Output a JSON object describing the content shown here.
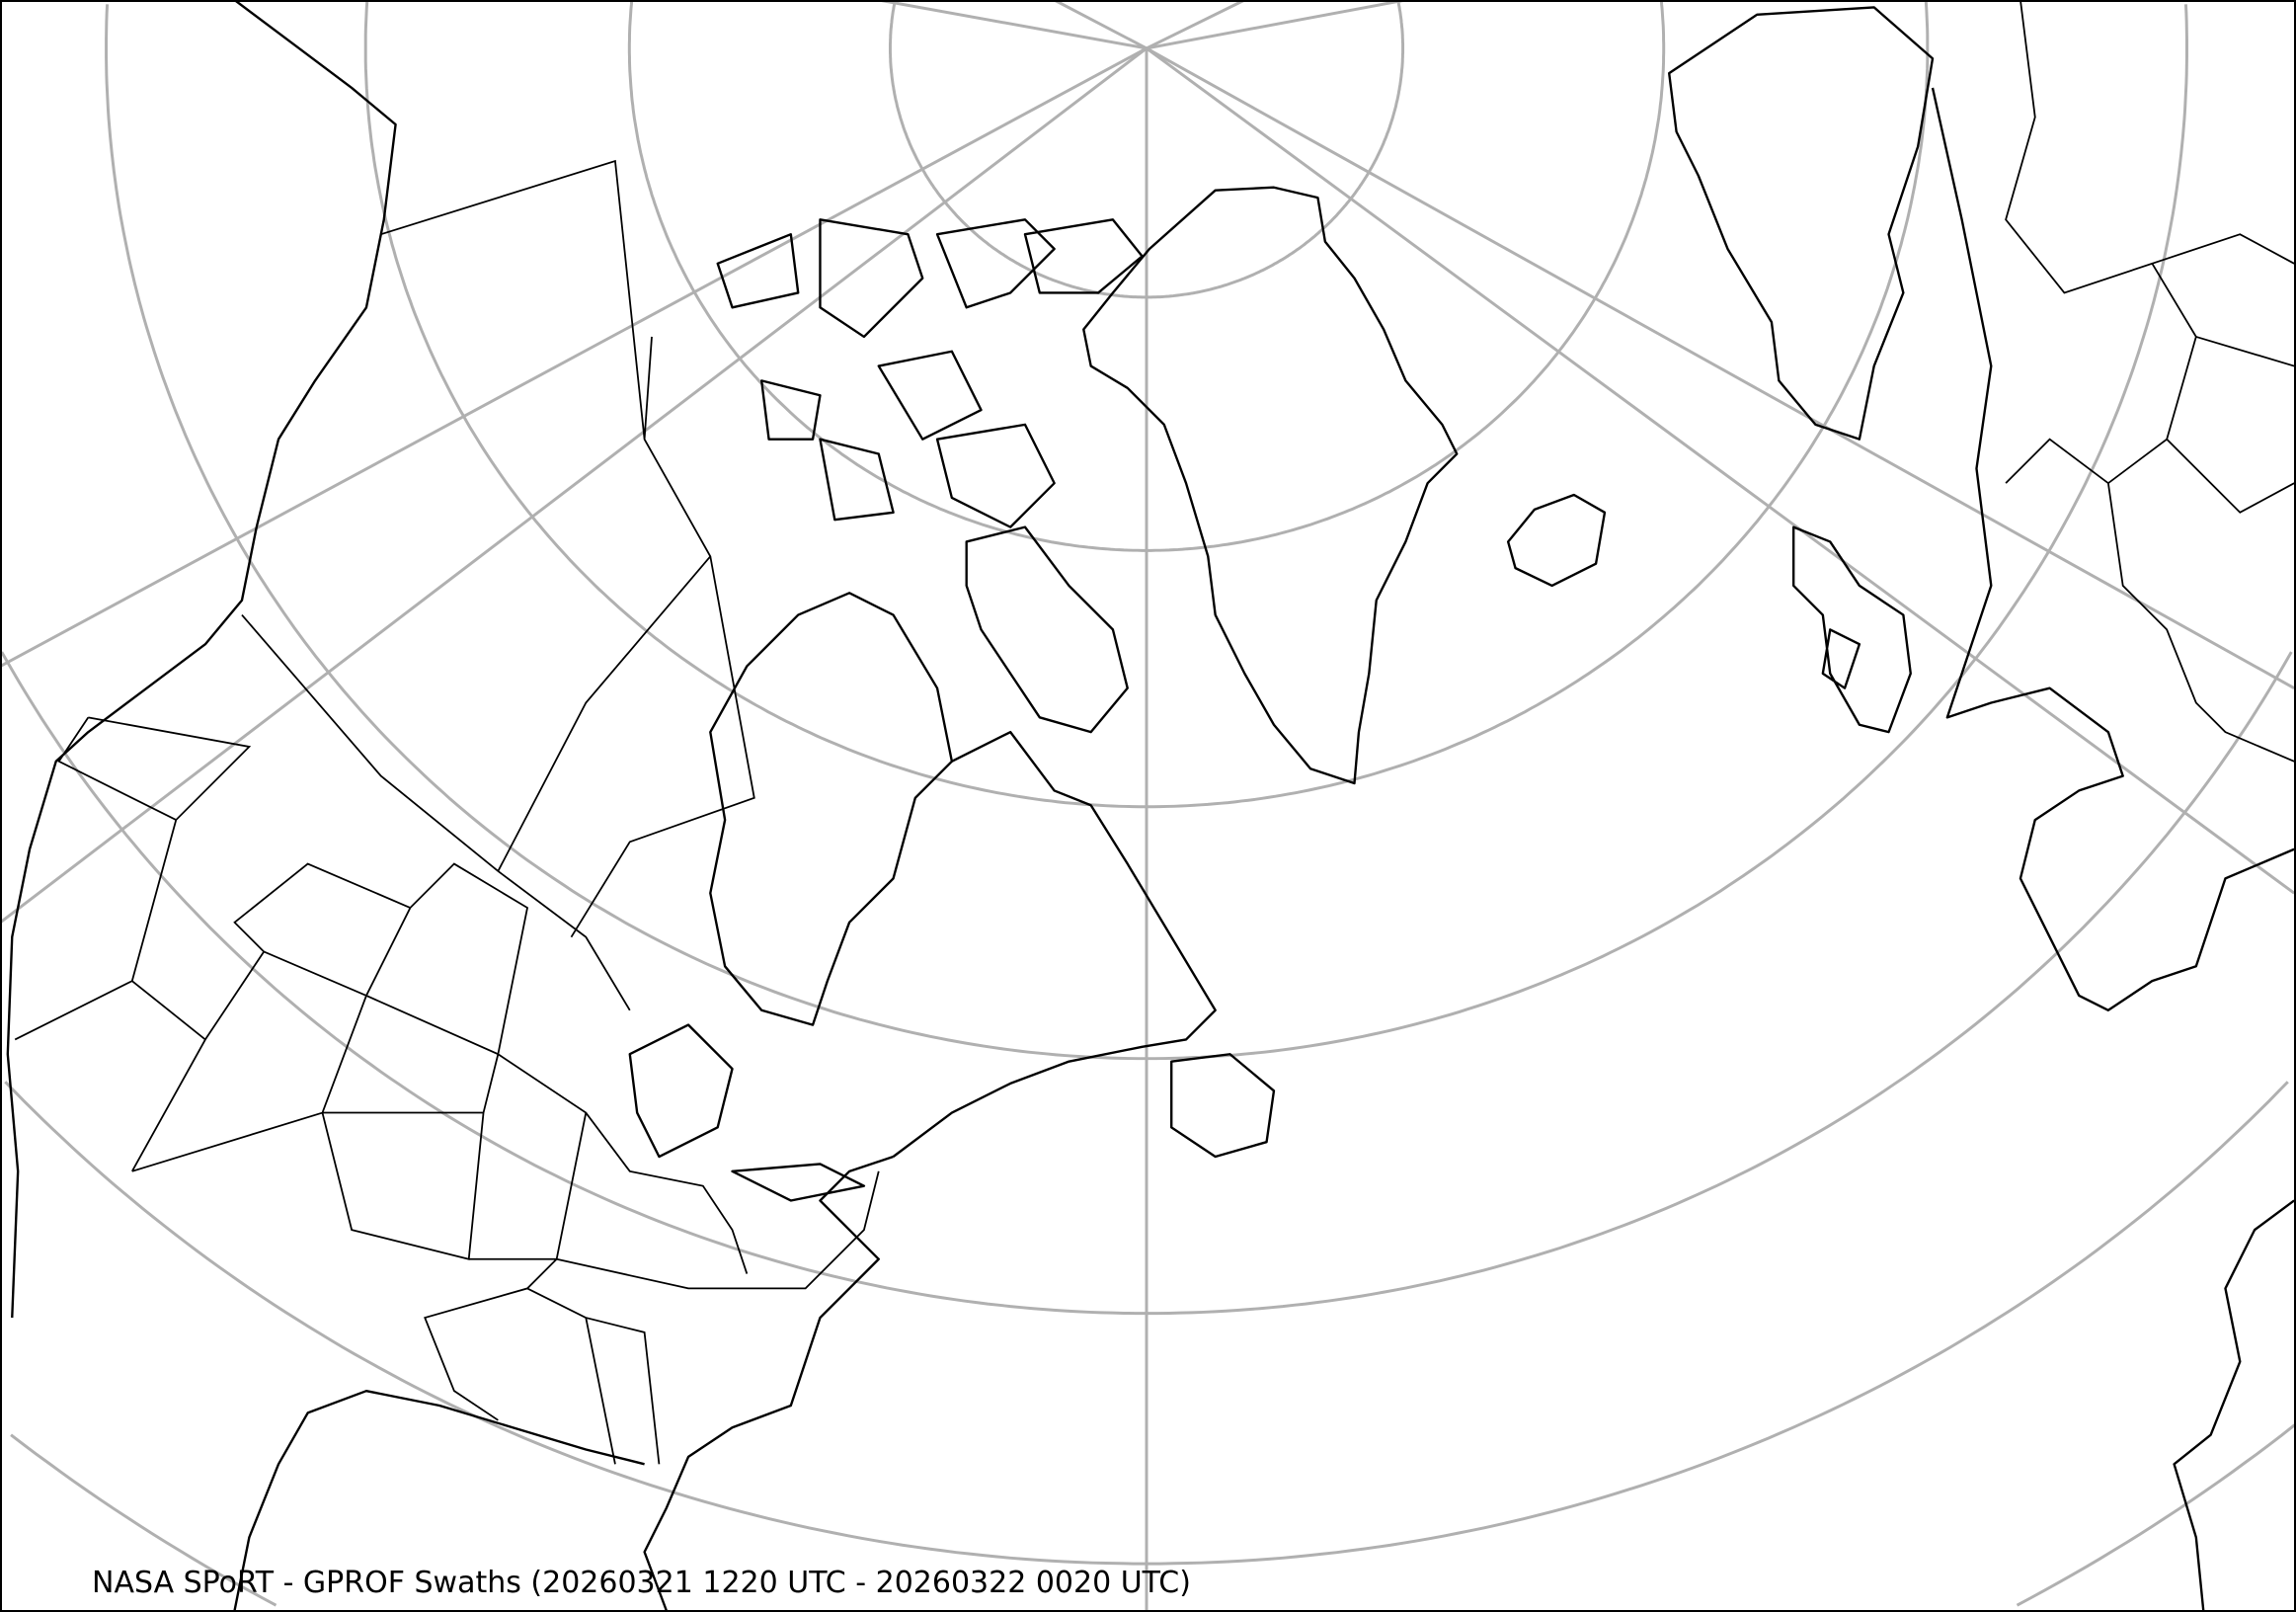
{
  "map": {
    "caption": "NASA SPoRT - GPROF Swaths (20260321 1220 UTC - 20260322 0020 UTC)",
    "projection": "north-polar conic",
    "region": "North America, North Atlantic, Greenland, Europe",
    "colors": {
      "background": "#ffffff",
      "graticule": "#b0b0b0",
      "coastline": "#000000"
    }
  }
}
